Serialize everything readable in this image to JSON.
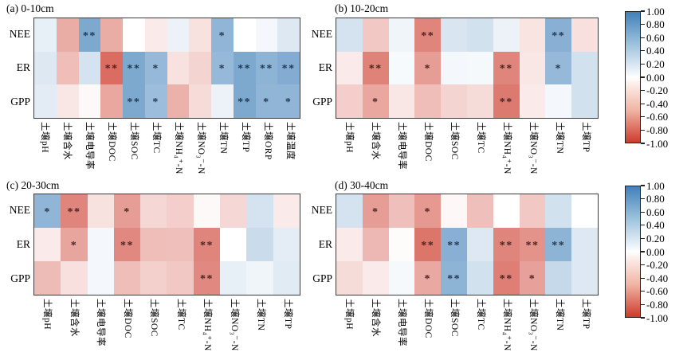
{
  "chart_data": [
    {
      "type": "heatmap",
      "panel": "a",
      "title": "(a) 0-10cm",
      "rows": [
        "NEE",
        "ER",
        "GPP"
      ],
      "columns": [
        "土壤pH",
        "土壤含水",
        "土壤电导率",
        "土壤DOC",
        "土壤SOC",
        "土壤TC",
        "土壤NH₄⁺-N",
        "土壤NO₃⁻-N",
        "土壤TN",
        "土壤TP",
        "土壤ORP",
        "土壤温度"
      ],
      "values": [
        [
          0.12,
          -0.42,
          0.68,
          -0.42,
          0.0,
          -0.1,
          0.1,
          -0.15,
          0.58,
          0.0,
          0.06,
          0.18
        ],
        [
          0.18,
          -0.33,
          0.22,
          -0.75,
          0.68,
          0.55,
          -0.15,
          -0.22,
          0.55,
          0.68,
          0.6,
          0.65
        ],
        [
          0.15,
          -0.12,
          -0.03,
          -0.45,
          0.68,
          0.52,
          -0.4,
          -0.18,
          0.1,
          0.68,
          0.58,
          0.58
        ]
      ],
      "significance": [
        [
          "",
          "",
          "**",
          "",
          "",
          "",
          "",
          "",
          "*",
          "",
          "",
          ""
        ],
        [
          "",
          "",
          "",
          "**",
          "**",
          "*",
          "",
          "",
          "*",
          "**",
          "**",
          "**"
        ],
        [
          "",
          "",
          "",
          "",
          "**",
          "*",
          "",
          "",
          "",
          "**",
          "*",
          "*"
        ]
      ],
      "value_range": [
        -1,
        1
      ]
    },
    {
      "type": "heatmap",
      "panel": "b",
      "title": "(b) 10-20cm",
      "rows": [
        "NEE",
        "ER",
        "GPP"
      ],
      "columns": [
        "土壤pH",
        "土壤含水",
        "土壤电导率",
        "土壤DOC",
        "土壤SOC",
        "土壤TC",
        "土壤NH₄⁺-N",
        "土壤NO₃⁻-N",
        "土壤TN",
        "土壤TP"
      ],
      "values": [
        [
          0.22,
          -0.28,
          0.08,
          -0.62,
          0.2,
          0.24,
          0.1,
          -0.14,
          0.62,
          -0.16
        ],
        [
          -0.1,
          -0.64,
          0.04,
          -0.5,
          0.06,
          0.05,
          -0.62,
          -0.12,
          0.55,
          0.24
        ],
        [
          -0.25,
          -0.45,
          -0.12,
          -0.33,
          -0.22,
          -0.18,
          -0.68,
          -0.1,
          0.06,
          0.24
        ]
      ],
      "significance": [
        [
          "",
          "",
          "",
          "**",
          "",
          "",
          "",
          "",
          "**",
          ""
        ],
        [
          "",
          "**",
          "",
          "*",
          "",
          "",
          "**",
          "",
          "*",
          ""
        ],
        [
          "",
          "*",
          "",
          "",
          "",
          "",
          "**",
          "",
          "",
          ""
        ]
      ],
      "value_range": [
        -1,
        1
      ]
    },
    {
      "type": "heatmap",
      "panel": "c",
      "title": "(c) 20-30cm",
      "rows": [
        "NEE",
        "ER",
        "GPP"
      ],
      "columns": [
        "土壤pH",
        "土壤含水",
        "土壤电导率",
        "土壤DOC",
        "土壤SOC",
        "土壤TC",
        "土壤NH₄⁺-N",
        "土壤NO₃⁻-N",
        "土壤TN",
        "土壤TP"
      ],
      "values": [
        [
          0.58,
          -0.62,
          -0.15,
          -0.5,
          -0.2,
          -0.25,
          -0.03,
          -0.2,
          0.22,
          -0.1
        ],
        [
          -0.1,
          -0.46,
          0.06,
          -0.6,
          -0.33,
          -0.32,
          -0.62,
          0.0,
          0.28,
          0.14
        ],
        [
          -0.34,
          -0.16,
          0.06,
          -0.33,
          -0.24,
          -0.28,
          -0.6,
          0.12,
          0.08,
          0.16
        ]
      ],
      "significance": [
        [
          "*",
          "**",
          "",
          "*",
          "",
          "",
          "",
          "",
          "",
          ""
        ],
        [
          "",
          "*",
          "",
          "**",
          "",
          "",
          "**",
          "",
          "",
          ""
        ],
        [
          "",
          "",
          "",
          "",
          "",
          "",
          "**",
          "",
          "",
          ""
        ]
      ],
      "value_range": [
        -1,
        1
      ]
    },
    {
      "type": "heatmap",
      "panel": "d",
      "title": "(d) 30-40cm",
      "rows": [
        "NEE",
        "ER",
        "GPP"
      ],
      "columns": [
        "土壤pH",
        "土壤含水",
        "土壤电导率",
        "土壤DOC",
        "土壤SOC",
        "土壤TC",
        "土壤NH₄⁺-N",
        "土壤NO₃⁻-N",
        "土壤TN",
        "土壤TP"
      ],
      "values": [
        [
          0.22,
          -0.5,
          -0.32,
          -0.52,
          -0.04,
          -0.32,
          0.0,
          -0.28,
          0.24,
          0.0
        ],
        [
          -0.1,
          -0.36,
          -0.02,
          -0.7,
          0.62,
          0.18,
          -0.62,
          -0.55,
          0.6,
          0.18
        ],
        [
          -0.18,
          -0.1,
          0.05,
          -0.44,
          0.6,
          0.24,
          -0.66,
          -0.48,
          0.3,
          0.18
        ]
      ],
      "significance": [
        [
          "",
          "*",
          "",
          "*",
          "",
          "",
          "",
          "",
          "",
          ""
        ],
        [
          "",
          "",
          "",
          "**",
          "**",
          "",
          "**",
          "**",
          "**",
          ""
        ],
        [
          "",
          "",
          "",
          "*",
          "**",
          "",
          "**",
          "*",
          "",
          ""
        ]
      ],
      "value_range": [
        -1,
        1
      ]
    }
  ],
  "colorbar": {
    "ticks": [
      "1.00",
      "0.80",
      "0.60",
      "0.40",
      "0.20",
      "0.00",
      "-0.20",
      "-0.40",
      "-0.60",
      "-0.80",
      "-1.00"
    ],
    "max_color": "#4180b9",
    "mid_color": "#ffffff",
    "min_color": "#cd3b2c"
  }
}
